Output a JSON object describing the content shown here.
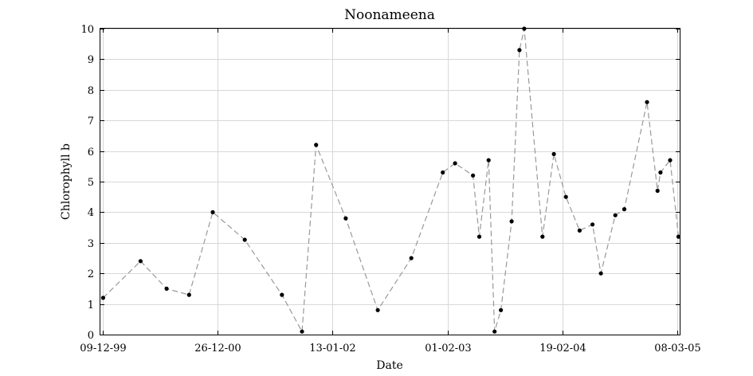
{
  "chart_data": {
    "type": "line",
    "title": "Noonameena",
    "xlabel": "Date",
    "ylabel": "Chlorophyll b",
    "ylim": [
      0,
      10
    ],
    "xlim": [
      "1999-11-30",
      "2005-03-17"
    ],
    "yticks": [
      0,
      1,
      2,
      3,
      4,
      5,
      6,
      7,
      8,
      9,
      10
    ],
    "xticks": [
      {
        "date": "1999-12-09",
        "label": "09-12-99"
      },
      {
        "date": "2000-12-26",
        "label": "26-12-00"
      },
      {
        "date": "2002-01-13",
        "label": "13-01-02"
      },
      {
        "date": "2003-02-01",
        "label": "01-02-03"
      },
      {
        "date": "2004-02-19",
        "label": "19-02-04"
      },
      {
        "date": "2005-03-08",
        "label": "08-03-05"
      }
    ],
    "grid": true,
    "line_color": "#999999",
    "marker_color": "#000000",
    "series": [
      {
        "points": [
          [
            "1999-12-09",
            1.2
          ],
          [
            "2000-04-12",
            2.4
          ],
          [
            "2000-07-08",
            1.5
          ],
          [
            "2000-09-21",
            1.3
          ],
          [
            "2000-12-09",
            4.0
          ],
          [
            "2001-03-26",
            3.1
          ],
          [
            "2001-07-28",
            1.3
          ],
          [
            "2001-10-03",
            0.1
          ],
          [
            "2001-11-19",
            6.2
          ],
          [
            "2002-02-26",
            3.8
          ],
          [
            "2002-06-13",
            0.8
          ],
          [
            "2002-10-03",
            2.5
          ],
          [
            "2003-01-16",
            5.3
          ],
          [
            "2003-02-26",
            5.6
          ],
          [
            "2003-04-27",
            5.2
          ],
          [
            "2003-05-18",
            3.2
          ],
          [
            "2003-06-18",
            5.7
          ],
          [
            "2003-07-08",
            0.1
          ],
          [
            "2003-07-29",
            0.8
          ],
          [
            "2003-09-03",
            3.7
          ],
          [
            "2003-09-29",
            9.3
          ],
          [
            "2003-10-15",
            10.0
          ],
          [
            "2003-12-15",
            3.2
          ],
          [
            "2004-01-22",
            5.9
          ],
          [
            "2004-03-02",
            4.5
          ],
          [
            "2004-04-17",
            3.4
          ],
          [
            "2004-05-30",
            3.6
          ],
          [
            "2004-06-27",
            2.0
          ],
          [
            "2004-08-14",
            3.9
          ],
          [
            "2004-09-13",
            4.1
          ],
          [
            "2004-11-28",
            7.6
          ],
          [
            "2005-01-02",
            4.7
          ],
          [
            "2005-01-12",
            5.3
          ],
          [
            "2005-02-13",
            5.7
          ],
          [
            "2005-03-13",
            3.2
          ]
        ]
      }
    ]
  }
}
